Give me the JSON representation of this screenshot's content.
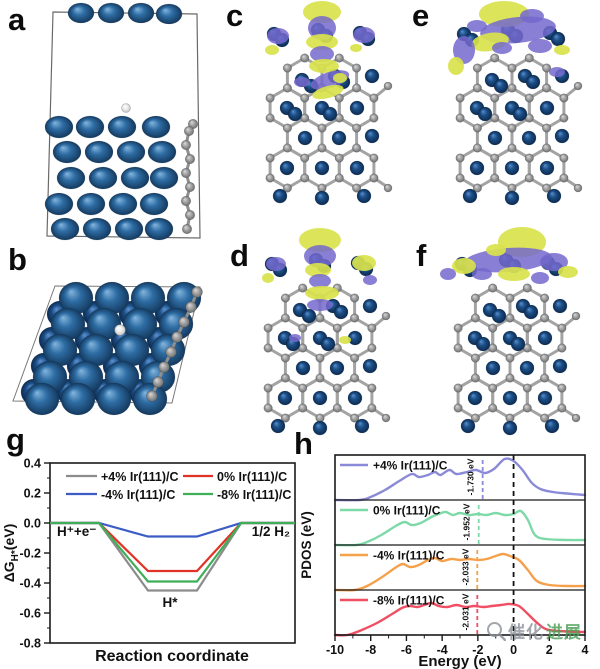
{
  "figure": {
    "panel_labels": {
      "a": "a",
      "b": "b",
      "c": "c",
      "d": "d",
      "e": "e",
      "f": "f",
      "g": "g",
      "h": "h"
    }
  },
  "atoms": {
    "ir_color": "#2e6da4",
    "carbon_color": "#a5a5a5",
    "hydrogen_color": "#eeeeee",
    "charge_accumulation_color": "#d9e24c",
    "charge_depletion_color": "#7468cc"
  },
  "chart_data": [
    {
      "id": "g",
      "type": "line",
      "xlabel": "Reaction coordinate",
      "ylabel": "ΔG_H*(eV)",
      "ylabel_parts": {
        "main": "ΔG",
        "sub": "H*",
        "unit": "(eV)"
      },
      "ylim": [
        -0.8,
        0.4
      ],
      "yticks": [
        0.4,
        0.2,
        0.0,
        -0.2,
        -0.4,
        -0.6,
        -0.8
      ],
      "state_labels": {
        "initial": "H⁺+e⁻",
        "adsorbed": "H*",
        "final": "1/2 H₂"
      },
      "x_breakpoints": [
        0,
        0.2,
        0.4,
        0.6,
        0.78,
        1
      ],
      "series": [
        {
          "name": "+4% Ir(111)/C",
          "color": "#8c8c8c",
          "delta_g": -0.45
        },
        {
          "name": "0% Ir(111)/C",
          "color": "#e03226",
          "delta_g": -0.32
        },
        {
          "name": "-4% Ir(111)/C",
          "color": "#3c5cc5",
          "delta_g": -0.09
        },
        {
          "name": "-8% Ir(111)/C",
          "color": "#3fae57",
          "delta_g": -0.39
        }
      ],
      "legend_order": [
        [
          "+4% Ir(111)/C",
          "0% Ir(111)/C"
        ],
        [
          "-4% Ir(111)/C",
          "-8% Ir(111)/C"
        ]
      ],
      "legend_position": "top-inside"
    },
    {
      "id": "h",
      "type": "line",
      "xlabel": "Energy (eV)",
      "ylabel": "PDOS (eV)",
      "xlim": [
        -10,
        4
      ],
      "xticks": [
        -10,
        -8,
        -6,
        -4,
        -2,
        0,
        2,
        4
      ],
      "fermi_level_eV": 0,
      "panels": [
        {
          "name": "+4% Ir(111)/C",
          "color": "#8a8ad8",
          "d_band_center_eV": -1.73,
          "d_band_label": "-1.730 eV",
          "curve": [
            [
              -10,
              0
            ],
            [
              -8.6,
              0
            ],
            [
              -8,
              0.06
            ],
            [
              -7.2,
              0.2
            ],
            [
              -6.4,
              0.38
            ],
            [
              -5.7,
              0.52
            ],
            [
              -5.3,
              0.46
            ],
            [
              -4.8,
              0.5
            ],
            [
              -4.4,
              0.56
            ],
            [
              -4.1,
              0.5
            ],
            [
              -3.6,
              0.6
            ],
            [
              -3.2,
              0.52
            ],
            [
              -2.6,
              0.56
            ],
            [
              -2.1,
              0.6
            ],
            [
              -1.6,
              0.54
            ],
            [
              -1.1,
              0.62
            ],
            [
              -0.5,
              0.82
            ],
            [
              0,
              0.78
            ],
            [
              0.5,
              0.6
            ],
            [
              1,
              0.35
            ],
            [
              1.5,
              0.22
            ],
            [
              2.2,
              0.16
            ],
            [
              3,
              0.13
            ],
            [
              4,
              0.1
            ]
          ]
        },
        {
          "name": "0% Ir(111)/C",
          "color": "#7ed9a8",
          "d_band_center_eV": -1.952,
          "d_band_label": "-1.952 eV",
          "curve": [
            [
              -10,
              0
            ],
            [
              -8.8,
              0
            ],
            [
              -8.2,
              0.06
            ],
            [
              -7.4,
              0.2
            ],
            [
              -6.6,
              0.38
            ],
            [
              -6.1,
              0.46
            ],
            [
              -5.7,
              0.4
            ],
            [
              -5.2,
              0.44
            ],
            [
              -4.6,
              0.56
            ],
            [
              -4.2,
              0.62
            ],
            [
              -3.8,
              0.66
            ],
            [
              -3.4,
              0.6
            ],
            [
              -3.0,
              0.64
            ],
            [
              -2.5,
              0.6
            ],
            [
              -2.0,
              0.62
            ],
            [
              -1.5,
              0.6
            ],
            [
              -1.0,
              0.64
            ],
            [
              -0.5,
              0.6
            ],
            [
              0,
              0.62
            ],
            [
              0.4,
              0.68
            ],
            [
              0.8,
              0.5
            ],
            [
              1.2,
              0.2
            ],
            [
              1.8,
              0.12
            ],
            [
              3,
              0.1
            ],
            [
              4,
              0.1
            ]
          ]
        },
        {
          "name": "-4% Ir(111)/C",
          "color": "#f5a04b",
          "d_band_center_eV": -2.033,
          "d_band_label": "-2.033 eV",
          "curve": [
            [
              -10,
              0
            ],
            [
              -8.9,
              0
            ],
            [
              -8.2,
              0.08
            ],
            [
              -7.4,
              0.25
            ],
            [
              -6.6,
              0.45
            ],
            [
              -6.2,
              0.52
            ],
            [
              -5.8,
              0.46
            ],
            [
              -5.3,
              0.5
            ],
            [
              -4.8,
              0.6
            ],
            [
              -4.4,
              0.64
            ],
            [
              -4.0,
              0.58
            ],
            [
              -3.5,
              0.62
            ],
            [
              -3.0,
              0.6
            ],
            [
              -2.5,
              0.62
            ],
            [
              -2.0,
              0.6
            ],
            [
              -1.5,
              0.62
            ],
            [
              -1.0,
              0.68
            ],
            [
              -0.6,
              0.72
            ],
            [
              -0.2,
              0.68
            ],
            [
              0.3,
              0.6
            ],
            [
              0.8,
              0.4
            ],
            [
              1.3,
              0.18
            ],
            [
              2,
              0.1
            ],
            [
              3,
              0.08
            ],
            [
              4,
              0.08
            ]
          ]
        },
        {
          "name": "-8% Ir(111)/C",
          "color": "#f04e62",
          "d_band_center_eV": -2.031,
          "d_band_label": "-2.031 eV",
          "curve": [
            [
              -10,
              0
            ],
            [
              -9.3,
              0
            ],
            [
              -8.5,
              0.1
            ],
            [
              -7.6,
              0.25
            ],
            [
              -6.8,
              0.42
            ],
            [
              -6.2,
              0.55
            ],
            [
              -5.8,
              0.58
            ],
            [
              -5.4,
              0.56
            ],
            [
              -5.0,
              0.6
            ],
            [
              -4.6,
              0.64
            ],
            [
              -4.2,
              0.58
            ],
            [
              -3.7,
              0.56
            ],
            [
              -3.2,
              0.6
            ],
            [
              -2.7,
              0.56
            ],
            [
              -2.2,
              0.58
            ],
            [
              -1.7,
              0.56
            ],
            [
              -1.2,
              0.58
            ],
            [
              -0.7,
              0.6
            ],
            [
              -0.2,
              0.62
            ],
            [
              0.3,
              0.58
            ],
            [
              0.8,
              0.42
            ],
            [
              1.3,
              0.25
            ],
            [
              1.8,
              0.12
            ],
            [
              2.5,
              0.08
            ],
            [
              4,
              0.06
            ]
          ]
        }
      ]
    }
  ],
  "watermark": {
    "icon": "magnifier-icon",
    "text_gray": "催化",
    "text_green": "进展"
  }
}
